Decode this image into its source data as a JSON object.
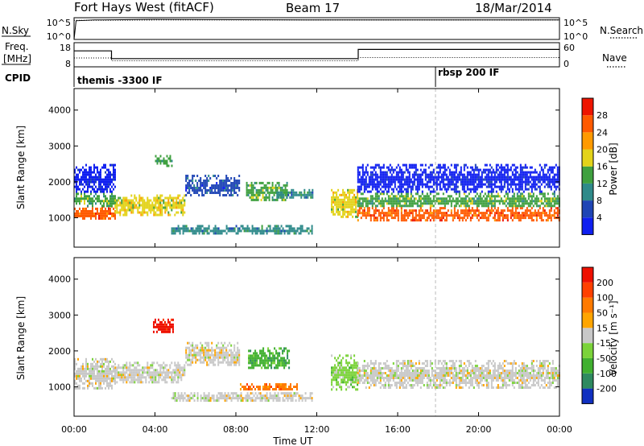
{
  "header": {
    "station": "Fort Hays West (fitACF)",
    "beam": "Beam 17",
    "date": "18/Mar/2014"
  },
  "left_labels": {
    "nsky": "N.Sky",
    "freq_line1": "Freq.",
    "freq_line2": "[MHz]",
    "cpid": "CPID"
  },
  "right_labels": {
    "nsearch": "N.Search",
    "nave": "Nave"
  },
  "cpid_labels": [
    "themis -3300 IF",
    "rbsp 200 IF"
  ],
  "chart_data": [
    {
      "type": "line",
      "name": "noise",
      "left_ticks": [
        "10^5",
        "10^0"
      ],
      "right_ticks": [
        "10^5",
        "10^0"
      ],
      "ylim_log10": [
        0,
        5
      ],
      "series": [
        {
          "name": "N.Sky",
          "x": [
            0.0,
            0.1,
            1.0,
            4.0,
            8.0,
            12.0,
            16.0,
            20.0,
            24.0
          ],
          "y": [
            1,
            20000,
            30000,
            40000,
            35000,
            30000,
            30000,
            30000,
            30000
          ]
        },
        {
          "name": "N.Search",
          "x": [
            0.0,
            4.0,
            8.0,
            12.0,
            16.0,
            20.0,
            24.0
          ],
          "y": [
            25000,
            30000,
            30000,
            30000,
            30000,
            30000,
            30000
          ]
        }
      ]
    },
    {
      "type": "line",
      "name": "frequency_nave",
      "left_ticks": [
        18,
        8
      ],
      "right_ticks": [
        60,
        0
      ],
      "freq_ylim": [
        8,
        18
      ],
      "nave_ylim": [
        0,
        60
      ],
      "series": [
        {
          "name": "Freq",
          "x": [
            0.0,
            1.85,
            1.85,
            14.05,
            14.05,
            24.0
          ],
          "y": [
            14.6,
            14.6,
            11.4,
            11.4,
            15.2,
            15.2
          ]
        },
        {
          "name": "Nave",
          "x": [
            0.0,
            1.85,
            1.85,
            14.05,
            14.05,
            24.0
          ],
          "y": [
            22,
            22,
            15,
            15,
            23,
            23
          ]
        }
      ]
    },
    {
      "type": "heatmap",
      "name": "power",
      "ylabel": "Slant Range [km]",
      "yticks": [
        1000,
        2000,
        3000,
        4000
      ],
      "ylim": [
        180,
        4600
      ],
      "xlim": [
        0,
        24
      ],
      "colorbar": {
        "label": "Power [dB]",
        "ticks": [
          4,
          8,
          12,
          16,
          20,
          24,
          28
        ],
        "colors": [
          "#0f1ff0",
          "#1f45b5",
          "#2f8a8a",
          "#3fa03f",
          "#e3d31a",
          "#ff9a00",
          "#ff5a00",
          "#ee1500"
        ]
      },
      "echo_regions": [
        {
          "t": [
            0.0,
            2.0
          ],
          "r": [
            950,
            1350
          ],
          "c": 6
        },
        {
          "t": [
            0.0,
            2.0
          ],
          "r": [
            1350,
            1700
          ],
          "c": 3
        },
        {
          "t": [
            0.0,
            2.0
          ],
          "r": [
            1700,
            2500
          ],
          "c": 0
        },
        {
          "t": [
            2.0,
            5.5
          ],
          "r": [
            1100,
            1650
          ],
          "c": 4
        },
        {
          "t": [
            4.0,
            4.8
          ],
          "r": [
            2450,
            2750
          ],
          "c": 3
        },
        {
          "t": [
            4.8,
            11.8
          ],
          "r": [
            550,
            800
          ],
          "c": 2
        },
        {
          "t": [
            5.5,
            8.2
          ],
          "r": [
            1600,
            2200
          ],
          "c": 1
        },
        {
          "t": [
            8.5,
            10.5
          ],
          "r": [
            1500,
            2000
          ],
          "c": 3
        },
        {
          "t": [
            10.0,
            11.8
          ],
          "r": [
            1550,
            1800
          ],
          "c": 2
        },
        {
          "t": [
            12.7,
            14.0
          ],
          "r": [
            1000,
            1800
          ],
          "c": 4
        },
        {
          "t": [
            14.0,
            24.0
          ],
          "r": [
            950,
            1300
          ],
          "c": 6
        },
        {
          "t": [
            14.0,
            24.0
          ],
          "r": [
            1300,
            1700
          ],
          "c": 3
        },
        {
          "t": [
            14.0,
            24.0
          ],
          "r": [
            1700,
            2500
          ],
          "c": 0
        }
      ]
    },
    {
      "type": "heatmap",
      "name": "velocity",
      "ylabel": "Slant Range [km]",
      "xlabel": "Time UT",
      "yticks": [
        1000,
        2000,
        3000,
        4000
      ],
      "ylim": [
        180,
        4600
      ],
      "xlim": [
        0,
        24
      ],
      "xticks": [
        "00:00",
        "04:00",
        "08:00",
        "12:00",
        "16:00",
        "20:00",
        "00:00"
      ],
      "xtick_hours": [
        0,
        4,
        8,
        12,
        16,
        20,
        24
      ],
      "colorbar": {
        "label": "Velocity [m s⁻¹]",
        "ticks": [
          200,
          100,
          50,
          15,
          -15,
          -50,
          -100,
          -200
        ],
        "colors": [
          "#1030c0",
          "#2e8a60",
          "#40b030",
          "#7bd33a",
          "#c8c8c8",
          "#ffa500",
          "#ff7a00",
          "#ff4000",
          "#ee1000"
        ]
      },
      "echo_regions": [
        {
          "t": [
            0.0,
            2.0
          ],
          "r": [
            950,
            1800
          ],
          "c": 4
        },
        {
          "t": [
            2.0,
            5.5
          ],
          "r": [
            1100,
            1700
          ],
          "c": 4
        },
        {
          "t": [
            3.9,
            4.9
          ],
          "r": [
            2500,
            2900
          ],
          "c": 8
        },
        {
          "t": [
            4.8,
            11.8
          ],
          "r": [
            600,
            850
          ],
          "c": 4
        },
        {
          "t": [
            5.5,
            8.2
          ],
          "r": [
            1600,
            2250
          ],
          "c": 4
        },
        {
          "t": [
            8.6,
            10.6
          ],
          "r": [
            1500,
            2100
          ],
          "c": 2
        },
        {
          "t": [
            8.2,
            11.0
          ],
          "r": [
            900,
            1100
          ],
          "c": 6
        },
        {
          "t": [
            12.7,
            14.0
          ],
          "r": [
            900,
            1900
          ],
          "c": 3
        },
        {
          "t": [
            14.0,
            24.0
          ],
          "r": [
            950,
            1750
          ],
          "c": 4
        }
      ]
    }
  ],
  "colors": {
    "axis": "#000000",
    "dashed_marker": "#bbbbbb"
  }
}
